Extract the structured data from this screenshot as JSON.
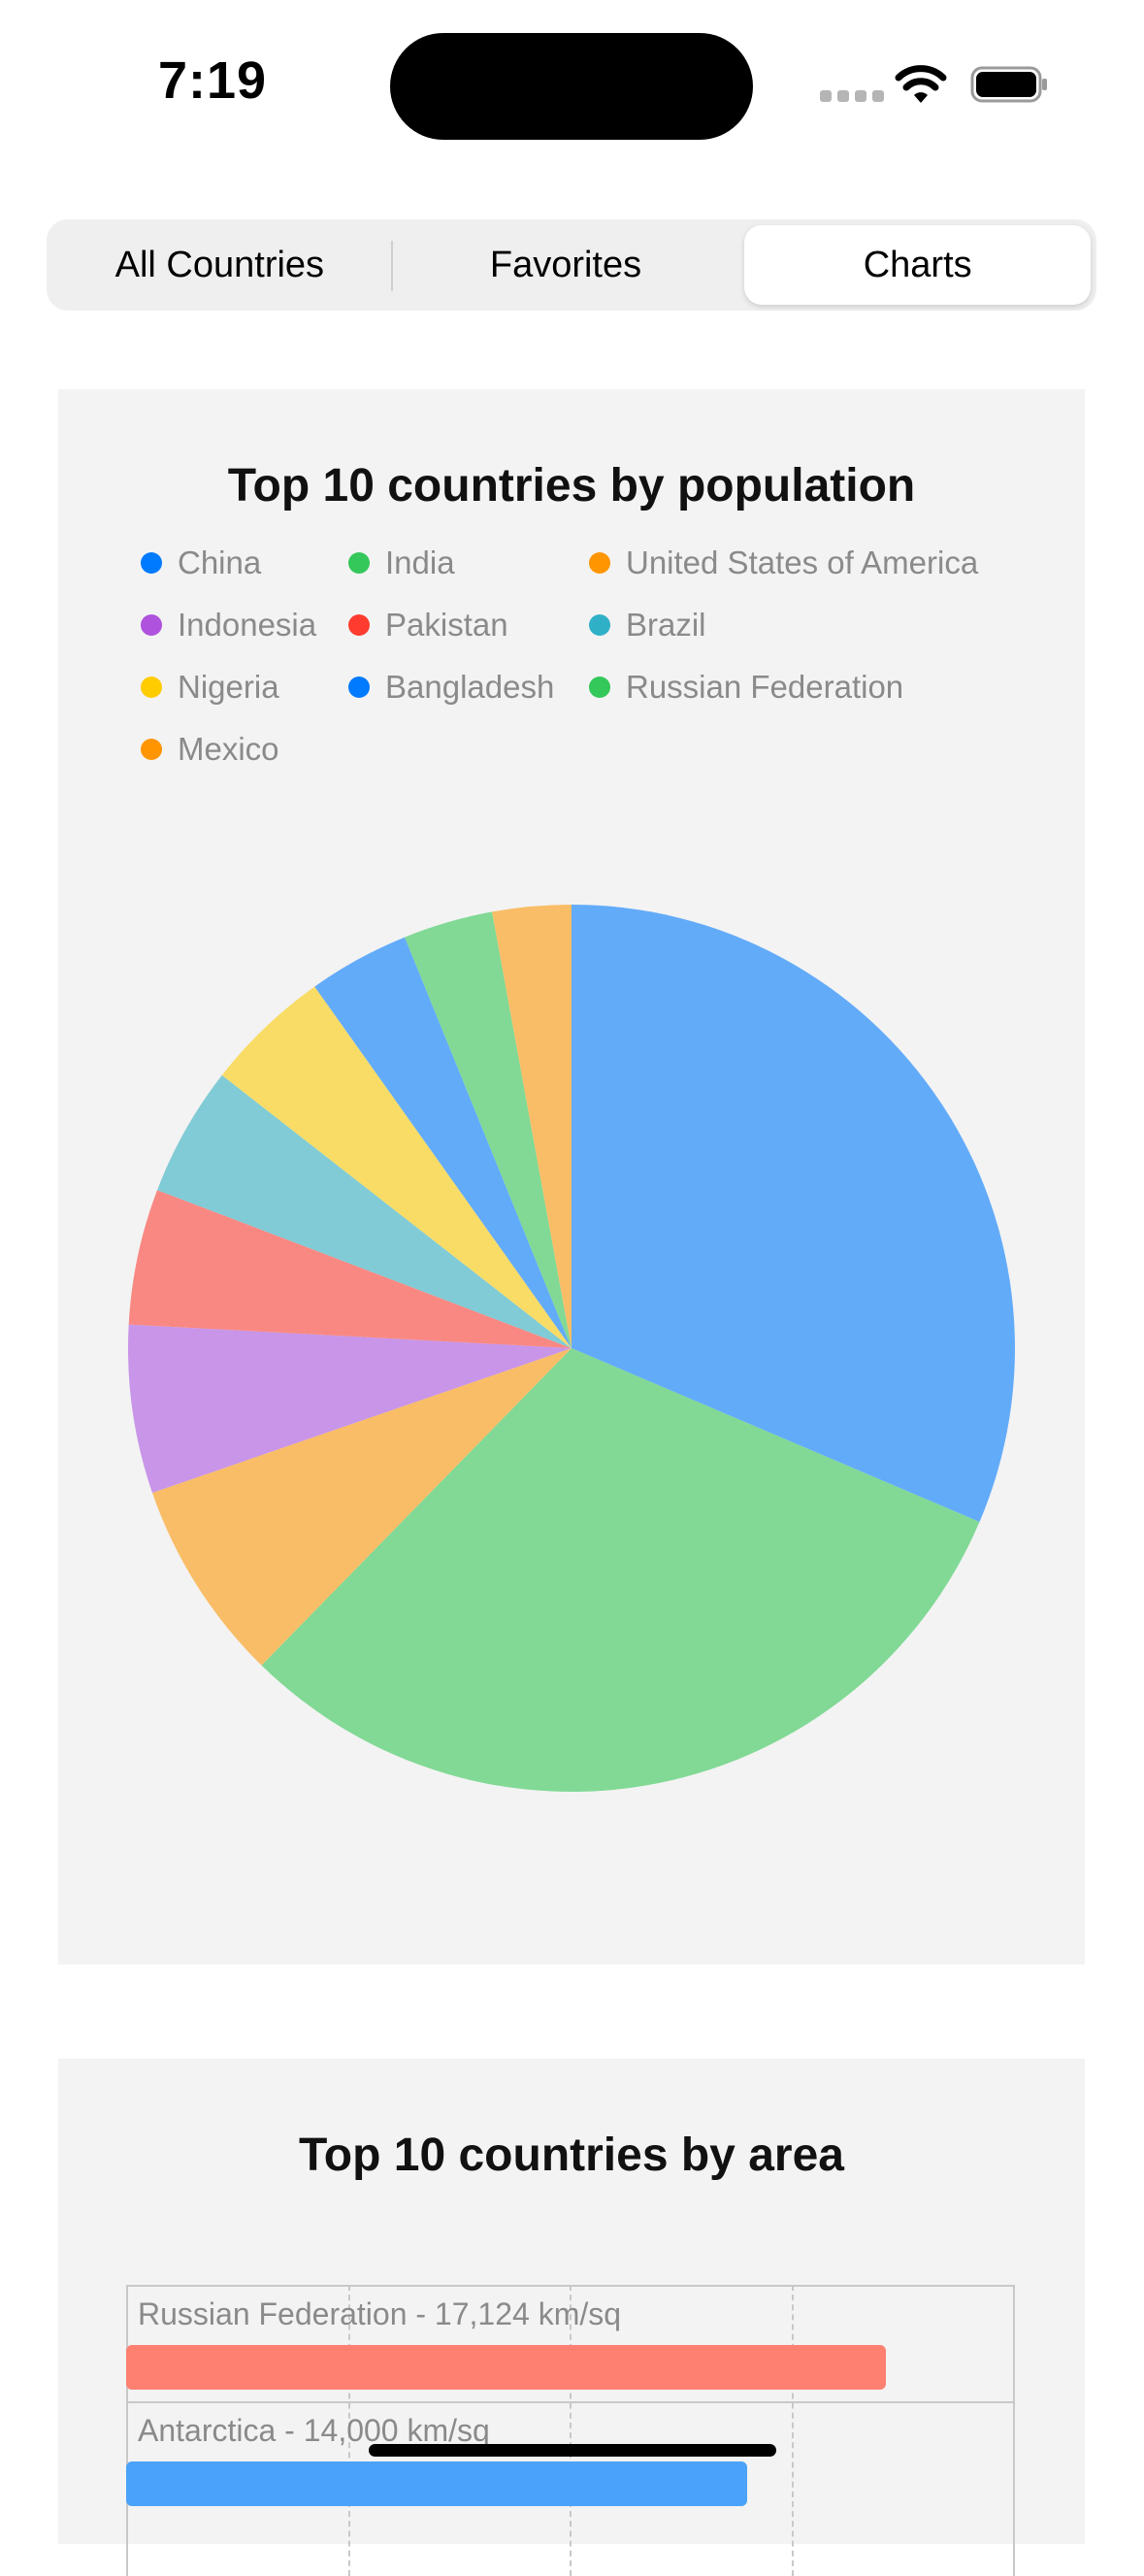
{
  "status_bar": {
    "time": "7:19"
  },
  "tabs": [
    {
      "label": "All Countries",
      "selected": false
    },
    {
      "label": "Favorites",
      "selected": false
    },
    {
      "label": "Charts",
      "selected": true
    }
  ],
  "population_chart": {
    "title": "Top 10 countries by population"
  },
  "area_chart": {
    "title": "Top 10 countries by area"
  },
  "chart_data": [
    {
      "type": "pie",
      "title": "Top 10 countries by population",
      "legend_position": "top",
      "categories": [
        "China",
        "India",
        "United States of America",
        "Indonesia",
        "Pakistan",
        "Brazil",
        "Nigeria",
        "Bangladesh",
        "Russian Federation",
        "Mexico"
      ],
      "values": [
        1402,
        1380,
        330,
        274,
        221,
        212,
        206,
        165,
        146,
        128
      ],
      "colors": [
        "#007aff",
        "#34c759",
        "#ff9500",
        "#af52de",
        "#ff3b30",
        "#30b0c7",
        "#ffcc00",
        "#007aff",
        "#34c759",
        "#ff9500"
      ],
      "slice_colors": [
        "#62abf9",
        "#81d995",
        "#f9bd67",
        "#c895e8",
        "#f98883",
        "#81cbd6",
        "#f9dc66",
        "#62abf9",
        "#81d995",
        "#f9bd67"
      ]
    },
    {
      "type": "bar",
      "orientation": "horizontal",
      "title": "Top 10 countries by area",
      "unit": "km/sq",
      "categories": [
        "Russian Federation",
        "Antarctica"
      ],
      "labels": [
        "Russian Federation - 17,124 km/sq",
        "Antarctica - 14,000 km/sq"
      ],
      "values": [
        17124,
        14000
      ],
      "xlim": [
        0,
        20000
      ],
      "colors": [
        "#fd8071",
        "#4aa3f8"
      ]
    }
  ]
}
